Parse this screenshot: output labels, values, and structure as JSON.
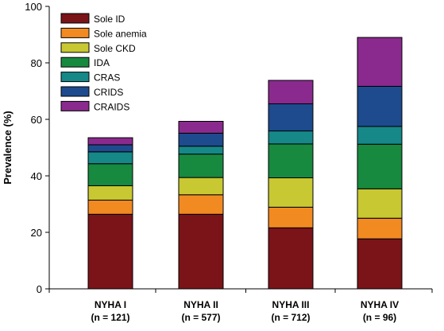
{
  "chart_data": {
    "type": "bar",
    "stacked": true,
    "title": "",
    "xlabel": "",
    "ylabel": "Prevalence (%)",
    "ylim": [
      0,
      100
    ],
    "yticks": [
      0,
      20,
      40,
      60,
      80,
      100
    ],
    "grid": false,
    "legend_position": "top-left",
    "categories": [
      {
        "name": "NYHA I",
        "n": "(n = 121)"
      },
      {
        "name": "NYHA II",
        "n": "(n = 577)"
      },
      {
        "name": "NYHA III",
        "n": "(n = 712)"
      },
      {
        "name": "NYHA IV",
        "n": "(n = 96)"
      }
    ],
    "series": [
      {
        "name": "Sole ID",
        "color": "#7a1418",
        "values": [
          26.4,
          26.4,
          21.6,
          17.7
        ]
      },
      {
        "name": "Sole anemia",
        "color": "#f28a22",
        "values": [
          5.0,
          6.9,
          7.3,
          7.3
        ]
      },
      {
        "name": "Sole CKD",
        "color": "#c8c832",
        "values": [
          5.1,
          6.1,
          10.4,
          10.4
        ]
      },
      {
        "name": "IDA",
        "color": "#178a40",
        "values": [
          7.8,
          8.3,
          12.0,
          15.8
        ]
      },
      {
        "name": "CRAS",
        "color": "#168888",
        "values": [
          4.2,
          2.8,
          4.6,
          6.3
        ]
      },
      {
        "name": "CRIDS",
        "color": "#1e4a8e",
        "values": [
          2.5,
          4.6,
          9.6,
          14.2
        ]
      },
      {
        "name": "CRAIDS",
        "color": "#8a2a8e",
        "values": [
          2.5,
          4.2,
          8.3,
          17.3
        ]
      }
    ]
  }
}
